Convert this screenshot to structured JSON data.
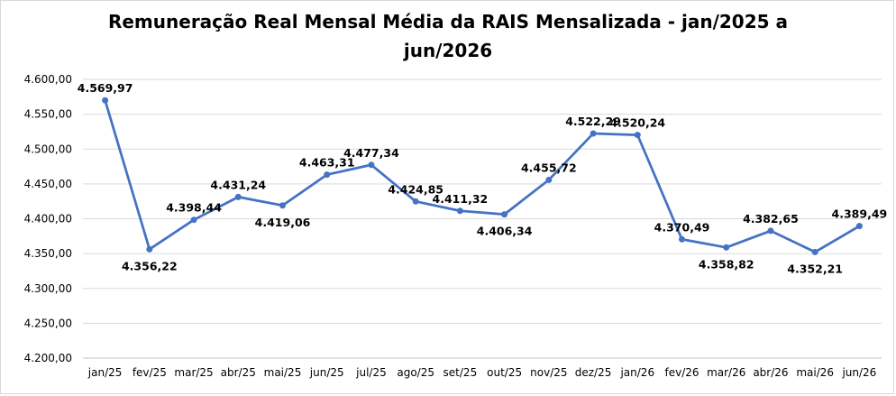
{
  "chart_data": {
    "type": "line",
    "title_line1": "Remuneração Real Mensal Média da RAIS Mensalizada - jan/2025 a",
    "title_line2": "jun/2026",
    "xlabel": "",
    "ylabel": "",
    "ylim": [
      4200,
      4600
    ],
    "yticks": [
      4200,
      4250,
      4300,
      4350,
      4400,
      4450,
      4500,
      4550,
      4600
    ],
    "ytick_labels": [
      "4.200,00",
      "4.250,00",
      "4.300,00",
      "4.350,00",
      "4.400,00",
      "4.450,00",
      "4.500,00",
      "4.550,00",
      "4.600,00"
    ],
    "categories": [
      "jan/25",
      "fev/25",
      "mar/25",
      "abr/25",
      "mai/25",
      "jun/25",
      "jul/25",
      "ago/25",
      "set/25",
      "out/25",
      "nov/25",
      "dez/25",
      "jan/26",
      "fev/26",
      "mar/26",
      "abr/26",
      "mai/26",
      "jun/26"
    ],
    "values": [
      4569.97,
      4356.22,
      4398.44,
      4431.24,
      4419.06,
      4463.31,
      4477.34,
      4424.85,
      4411.32,
      4406.34,
      4455.72,
      4522.29,
      4520.24,
      4370.49,
      4358.82,
      4382.65,
      4352.21,
      4389.49
    ],
    "value_labels": [
      "4.569,97",
      "4.356,22",
      "4.398,44",
      "4.431,24",
      "4.419,06",
      "4.463,31",
      "4.477,34",
      "4.424,85",
      "4.411,32",
      "4.406,34",
      "4.455,72",
      "4.522,29",
      "4.520,24",
      "4.370,49",
      "4.358,82",
      "4.382,65",
      "4.352,21",
      "4.389,49"
    ],
    "label_positions": [
      "above",
      "below",
      "above",
      "above",
      "below",
      "above",
      "above",
      "above",
      "above",
      "below",
      "above",
      "above",
      "above",
      "above",
      "below",
      "above",
      "below",
      "above"
    ],
    "grid": true,
    "legend": "none",
    "line_color": "#4472C4",
    "grid_color": "#D9D9D9"
  }
}
